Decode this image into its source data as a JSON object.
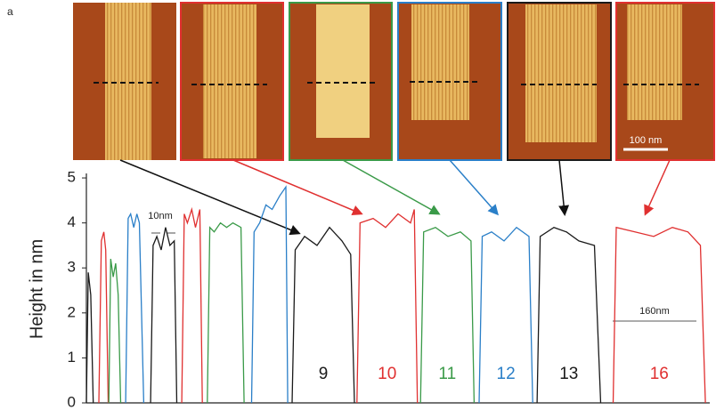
{
  "panel_label": "a",
  "chart_data": {
    "type": "line",
    "y_label": "Height in nm",
    "annotations": [
      "10nm",
      "160nm",
      "100 nm"
    ],
    "xlim": [
      0,
      100
    ],
    "ylim": [
      0,
      5.1
    ],
    "yticks": [
      0,
      1,
      2,
      3,
      4,
      5
    ],
    "series": [
      {
        "color": "#1a1a1a",
        "x": [
          0,
          0.3,
          0.7,
          1.1
        ],
        "values": [
          0,
          2.9,
          2.4,
          0
        ]
      },
      {
        "color": "#e03030",
        "x": [
          2,
          2.4,
          2.8,
          3.1,
          3.5
        ],
        "values": [
          0,
          3.6,
          3.8,
          3.4,
          0
        ]
      },
      {
        "color": "#3a9a48",
        "x": [
          3.6,
          3.9,
          4.3,
          4.7,
          5.1,
          5.5
        ],
        "values": [
          0,
          3.2,
          2.8,
          3.1,
          2.4,
          0
        ]
      },
      {
        "color": "#2a7fc8",
        "x": [
          6.3,
          6.7,
          7.1,
          7.6,
          8.1,
          8.5,
          9.2
        ],
        "values": [
          0,
          4.1,
          4.2,
          3.9,
          4.2,
          4.0,
          0
        ]
      },
      {
        "color": "#1a1a1a",
        "x": [
          10.3,
          10.7,
          11.3,
          12,
          12.7,
          13.4,
          14.1,
          14.5
        ],
        "values": [
          0,
          3.5,
          3.7,
          3.4,
          3.9,
          3.5,
          3.6,
          0
        ]
      },
      {
        "color": "#e03030",
        "x": [
          15.3,
          15.7,
          16.2,
          16.9,
          17.5,
          18.2,
          18.6
        ],
        "values": [
          0,
          4.2,
          4.0,
          4.3,
          3.9,
          4.3,
          0
        ]
      },
      {
        "color": "#3a9a48",
        "x": [
          19.4,
          19.8,
          20.5,
          21.5,
          22.5,
          23.5,
          24.8,
          25.3
        ],
        "values": [
          0,
          3.9,
          3.8,
          4.0,
          3.9,
          4.0,
          3.9,
          0
        ]
      },
      {
        "color": "#2a7fc8",
        "x": [
          26.5,
          26.9,
          27.8,
          28.8,
          29.8,
          31,
          32,
          32.3
        ],
        "values": [
          0,
          3.8,
          4.0,
          4.4,
          4.3,
          4.6,
          4.8,
          0
        ]
      },
      {
        "name": "9",
        "color": "#1a1a1a",
        "x": [
          33,
          33.5,
          35,
          37,
          39,
          41,
          42.4,
          43
        ],
        "values": [
          0,
          3.4,
          3.7,
          3.5,
          3.9,
          3.6,
          3.3,
          0
        ]
      },
      {
        "name": "10",
        "color": "#e03030",
        "x": [
          43.4,
          43.9,
          46,
          48,
          50,
          52,
          52.6,
          53.1
        ],
        "values": [
          0,
          4.0,
          4.1,
          3.9,
          4.2,
          4.0,
          4.3,
          0
        ]
      },
      {
        "name": "11",
        "color": "#3a9a48",
        "x": [
          53.6,
          54.1,
          56,
          58,
          60,
          61.7,
          62.2
        ],
        "values": [
          0,
          3.8,
          3.9,
          3.7,
          3.8,
          3.6,
          0
        ]
      },
      {
        "name": "12",
        "color": "#2a7fc8",
        "x": [
          63,
          63.5,
          65,
          67,
          69,
          71,
          71.6
        ],
        "values": [
          0,
          3.7,
          3.8,
          3.6,
          3.9,
          3.7,
          0
        ]
      },
      {
        "name": "13",
        "color": "#1a1a1a",
        "x": [
          72.3,
          72.8,
          75,
          77,
          79,
          81.5,
          82.5
        ],
        "values": [
          0,
          3.7,
          3.9,
          3.8,
          3.6,
          3.5,
          0
        ]
      },
      {
        "name": "16",
        "color": "#e03030",
        "x": [
          84.5,
          85,
          88,
          91,
          94,
          96.5,
          98.5,
          99.3
        ],
        "values": [
          0,
          3.9,
          3.8,
          3.7,
          3.9,
          3.8,
          3.5,
          0
        ]
      }
    ]
  }
}
